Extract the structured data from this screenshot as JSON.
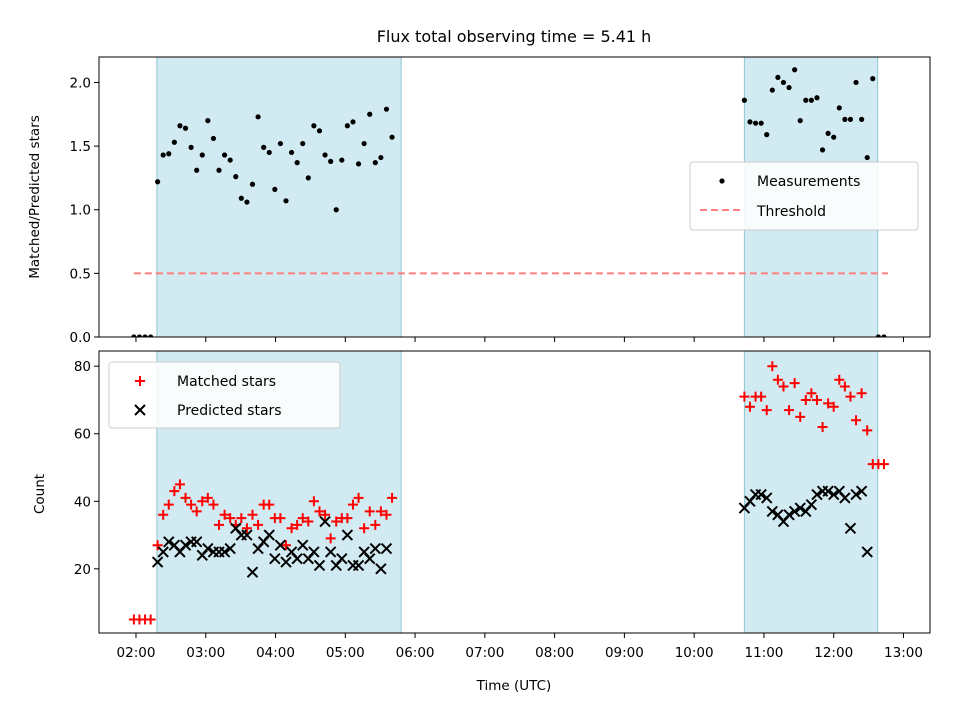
{
  "chart_data": [
    {
      "type": "scatter",
      "panel": "top",
      "title": "Flux total observing time = 5.41 h",
      "xlabel": "",
      "ylabel": "Matched/Predicted stars",
      "ylim": [
        0,
        2.2
      ],
      "yticks": [
        0.0,
        0.5,
        1.0,
        1.5,
        2.0
      ],
      "ytick_labels": [
        "0.0",
        "0.5",
        "1.0",
        "1.5",
        "2.0"
      ],
      "xlim": [
        1.47,
        13.38
      ],
      "legend_placement": "center-right",
      "legend": [
        "Measurements",
        "Threshold"
      ],
      "shaded_intervals": [
        [
          2.3,
          5.8
        ],
        [
          10.72,
          12.63
        ]
      ],
      "shade_color": "#add8e6",
      "threshold": {
        "name": "Threshold",
        "y": 0.5,
        "x_range": [
          1.97,
          12.78
        ],
        "color": "#ff7f7f"
      },
      "series": [
        {
          "name": "Measurements",
          "color": "#000000",
          "points": [
            [
              1.97,
              0
            ],
            [
              2.05,
              0
            ],
            [
              2.13,
              0
            ],
            [
              2.21,
              0
            ],
            [
              2.31,
              1.22
            ],
            [
              2.39,
              1.43
            ],
            [
              2.47,
              1.44
            ],
            [
              2.55,
              1.53
            ],
            [
              2.63,
              1.66
            ],
            [
              2.71,
              1.64
            ],
            [
              2.79,
              1.49
            ],
            [
              2.87,
              1.31
            ],
            [
              2.95,
              1.43
            ],
            [
              3.03,
              1.7
            ],
            [
              3.11,
              1.56
            ],
            [
              3.19,
              1.31
            ],
            [
              3.27,
              1.43
            ],
            [
              3.35,
              1.39
            ],
            [
              3.43,
              1.26
            ],
            [
              3.51,
              1.09
            ],
            [
              3.59,
              1.06
            ],
            [
              3.67,
              1.2
            ],
            [
              3.75,
              1.73
            ],
            [
              3.83,
              1.49
            ],
            [
              3.91,
              1.45
            ],
            [
              3.99,
              1.16
            ],
            [
              4.07,
              1.52
            ],
            [
              4.15,
              1.07
            ],
            [
              4.23,
              1.45
            ],
            [
              4.31,
              1.37
            ],
            [
              4.39,
              1.52
            ],
            [
              4.47,
              1.25
            ],
            [
              4.55,
              1.66
            ],
            [
              4.63,
              1.62
            ],
            [
              4.71,
              1.43
            ],
            [
              4.79,
              1.38
            ],
            [
              4.87,
              1.0
            ],
            [
              4.95,
              1.39
            ],
            [
              5.03,
              1.66
            ],
            [
              5.11,
              1.69
            ],
            [
              5.19,
              1.36
            ],
            [
              5.27,
              1.52
            ],
            [
              5.35,
              1.75
            ],
            [
              5.43,
              1.37
            ],
            [
              5.51,
              1.41
            ],
            [
              5.59,
              1.79
            ],
            [
              5.67,
              1.57
            ],
            [
              10.72,
              1.86
            ],
            [
              10.8,
              1.69
            ],
            [
              10.88,
              1.68
            ],
            [
              10.96,
              1.68
            ],
            [
              11.04,
              1.59
            ],
            [
              11.12,
              1.94
            ],
            [
              11.2,
              2.04
            ],
            [
              11.28,
              2.0
            ],
            [
              11.36,
              1.96
            ],
            [
              11.44,
              2.1
            ],
            [
              11.52,
              1.7
            ],
            [
              11.6,
              1.86
            ],
            [
              11.68,
              1.86
            ],
            [
              11.76,
              1.88
            ],
            [
              11.84,
              1.47
            ],
            [
              11.92,
              1.6
            ],
            [
              12.0,
              1.57
            ],
            [
              12.08,
              1.8
            ],
            [
              12.16,
              1.71
            ],
            [
              12.24,
              1.71
            ],
            [
              12.32,
              2.0
            ],
            [
              12.4,
              1.71
            ],
            [
              12.48,
              1.41
            ],
            [
              12.56,
              2.03
            ],
            [
              12.64,
              0
            ],
            [
              12.72,
              0
            ]
          ]
        }
      ]
    },
    {
      "type": "scatter",
      "panel": "bottom",
      "title": "",
      "xlabel": "Time (UTC)",
      "ylabel": "Count",
      "ylim": [
        1,
        84.5
      ],
      "yticks": [
        20,
        40,
        60,
        80
      ],
      "ytick_labels": [
        "20",
        "40",
        "60",
        "80"
      ],
      "xlim": [
        1.47,
        13.38
      ],
      "xticks": [
        2,
        3,
        4,
        5,
        6,
        7,
        8,
        9,
        10,
        11,
        12,
        13
      ],
      "xtick_labels": [
        "02:00",
        "03:00",
        "04:00",
        "05:00",
        "06:00",
        "07:00",
        "08:00",
        "09:00",
        "10:00",
        "11:00",
        "12:00",
        "13:00"
      ],
      "legend_placement": "upper-left",
      "legend": [
        "Matched stars",
        "Predicted stars"
      ],
      "shaded_intervals": [
        [
          2.3,
          5.8
        ],
        [
          10.72,
          12.63
        ]
      ],
      "shade_color": "#add8e6",
      "series": [
        {
          "name": "Matched stars",
          "marker": "+",
          "color": "#ff0000",
          "points": [
            [
              1.97,
              5
            ],
            [
              2.05,
              5
            ],
            [
              2.13,
              5
            ],
            [
              2.21,
              5
            ],
            [
              2.31,
              27
            ],
            [
              2.39,
              36
            ],
            [
              2.47,
              39
            ],
            [
              2.55,
              43
            ],
            [
              2.63,
              45
            ],
            [
              2.71,
              41
            ],
            [
              2.79,
              39
            ],
            [
              2.87,
              37
            ],
            [
              2.95,
              40
            ],
            [
              3.03,
              41
            ],
            [
              3.11,
              39
            ],
            [
              3.19,
              33
            ],
            [
              3.27,
              36
            ],
            [
              3.35,
              35
            ],
            [
              3.43,
              33
            ],
            [
              3.51,
              35
            ],
            [
              3.59,
              32
            ],
            [
              3.67,
              36
            ],
            [
              3.75,
              33
            ],
            [
              3.83,
              39
            ],
            [
              3.91,
              39
            ],
            [
              3.99,
              35
            ],
            [
              4.07,
              35
            ],
            [
              4.15,
              27
            ],
            [
              4.23,
              32
            ],
            [
              4.31,
              33
            ],
            [
              4.39,
              35
            ],
            [
              4.47,
              34
            ],
            [
              4.55,
              40
            ],
            [
              4.63,
              37
            ],
            [
              4.71,
              36
            ],
            [
              4.79,
              29
            ],
            [
              4.87,
              34
            ],
            [
              4.95,
              35
            ],
            [
              5.03,
              35
            ],
            [
              5.11,
              39
            ],
            [
              5.19,
              41
            ],
            [
              5.27,
              32
            ],
            [
              5.35,
              37
            ],
            [
              5.43,
              33
            ],
            [
              5.51,
              37
            ],
            [
              5.59,
              36
            ],
            [
              5.67,
              41
            ],
            [
              10.72,
              71
            ],
            [
              10.8,
              68
            ],
            [
              10.88,
              71
            ],
            [
              10.96,
              71
            ],
            [
              11.04,
              67
            ],
            [
              11.12,
              80
            ],
            [
              11.2,
              76
            ],
            [
              11.28,
              74
            ],
            [
              11.36,
              67
            ],
            [
              11.44,
              75
            ],
            [
              11.52,
              65
            ],
            [
              11.6,
              70
            ],
            [
              11.68,
              72
            ],
            [
              11.76,
              70
            ],
            [
              11.84,
              62
            ],
            [
              11.92,
              69
            ],
            [
              12.0,
              68
            ],
            [
              12.08,
              76
            ],
            [
              12.16,
              74
            ],
            [
              12.24,
              71
            ],
            [
              12.32,
              64
            ],
            [
              12.4,
              72
            ],
            [
              12.48,
              61
            ],
            [
              12.56,
              51
            ],
            [
              12.64,
              51
            ],
            [
              12.72,
              51
            ]
          ]
        },
        {
          "name": "Predicted stars",
          "marker": "x",
          "color": "#000000",
          "points": [
            [
              2.31,
              22
            ],
            [
              2.39,
              25
            ],
            [
              2.47,
              28
            ],
            [
              2.55,
              27
            ],
            [
              2.63,
              25
            ],
            [
              2.71,
              27
            ],
            [
              2.79,
              28
            ],
            [
              2.87,
              28
            ],
            [
              2.95,
              24
            ],
            [
              3.03,
              26
            ],
            [
              3.11,
              25
            ],
            [
              3.19,
              25
            ],
            [
              3.27,
              25
            ],
            [
              3.35,
              26
            ],
            [
              3.43,
              32
            ],
            [
              3.51,
              30
            ],
            [
              3.59,
              30
            ],
            [
              3.67,
              19
            ],
            [
              3.75,
              26
            ],
            [
              3.83,
              28
            ],
            [
              3.91,
              30
            ],
            [
              3.99,
              23
            ],
            [
              4.07,
              27
            ],
            [
              4.15,
              22
            ],
            [
              4.23,
              25
            ],
            [
              4.31,
              23
            ],
            [
              4.39,
              27
            ],
            [
              4.47,
              23
            ],
            [
              4.55,
              25
            ],
            [
              4.63,
              21
            ],
            [
              4.71,
              34
            ],
            [
              4.79,
              25
            ],
            [
              4.87,
              21
            ],
            [
              4.95,
              23
            ],
            [
              5.03,
              30
            ],
            [
              5.11,
              21
            ],
            [
              5.19,
              21
            ],
            [
              5.27,
              25
            ],
            [
              5.35,
              23
            ],
            [
              5.43,
              26
            ],
            [
              5.51,
              20
            ],
            [
              5.59,
              26
            ],
            [
              10.72,
              38
            ],
            [
              10.8,
              40
            ],
            [
              10.88,
              42
            ],
            [
              10.96,
              42
            ],
            [
              11.04,
              41
            ],
            [
              11.12,
              37
            ],
            [
              11.2,
              36
            ],
            [
              11.28,
              34
            ],
            [
              11.36,
              36
            ],
            [
              11.44,
              37
            ],
            [
              11.52,
              38
            ],
            [
              11.6,
              37
            ],
            [
              11.68,
              39
            ],
            [
              11.76,
              42
            ],
            [
              11.84,
              43
            ],
            [
              11.92,
              43
            ],
            [
              12.0,
              42
            ],
            [
              12.08,
              43
            ],
            [
              12.16,
              41
            ],
            [
              12.24,
              32
            ],
            [
              12.32,
              42
            ],
            [
              12.4,
              43
            ],
            [
              12.48,
              25
            ]
          ]
        }
      ]
    }
  ]
}
